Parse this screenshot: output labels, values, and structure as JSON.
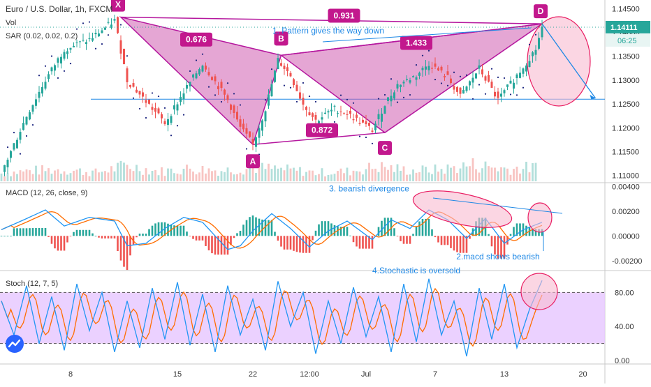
{
  "header": {
    "symbol_title": "Euro / U.S. Dollar, 1h, FXCM",
    "vol_label": "Vol",
    "sar_label": "SAR (0.02, 0.02, 0.2)",
    "last_price": "1.14111",
    "countdown": "06:25"
  },
  "panes": {
    "macd_label": "MACD (12, 26, close, 9)",
    "stoch_label": "Stoch (12, 7, 5)"
  },
  "colors": {
    "pattern_fill": "#d05cb0",
    "pattern_line": "#b5179e",
    "annotation": "#1e88e5",
    "ellipse_fill": "#f8bbd0",
    "ellipse_line": "#e91e63",
    "candle_up": "#26a69a",
    "candle_down": "#ef5350",
    "stoch_band": "#e6c6ff",
    "stoch_k": "#2196f3",
    "stoch_d": "#ff6d00",
    "macd_line": "#2196f3",
    "signal_line": "#ff6d00"
  },
  "icons": {
    "logo": "tradingview-cloud-icon"
  },
  "chart_data": [
    {
      "type": "line",
      "title": "Euro / U.S. Dollar, 1h, FXCM",
      "ylim": [
        1.1085,
        1.1465
      ],
      "y_ticks": [
        "1.14500",
        "1.14000",
        "1.13500",
        "1.13000",
        "1.12500",
        "1.12000",
        "1.11500",
        "1.11000"
      ],
      "y_tick_values": [
        1.145,
        1.14,
        1.135,
        1.13,
        1.125,
        1.12,
        1.115,
        1.11
      ],
      "x_ticks": [
        "8",
        "15",
        "22",
        "12:00",
        "Jul",
        "7",
        "13",
        "20"
      ],
      "x_tick_index": [
        22,
        56,
        80,
        98,
        116,
        138,
        160,
        185
      ],
      "close_path": {
        "index": [
          0,
          8,
          14,
          20,
          28,
          36,
          40,
          48,
          52,
          58,
          64,
          72,
          76,
          80,
          84,
          88,
          92,
          96,
          100,
          106,
          110,
          118,
          122,
          126,
          132,
          136,
          142,
          146,
          152,
          158,
          164,
          170,
          172
        ],
        "close": [
          1.1105,
          1.1225,
          1.13,
          1.1365,
          1.1385,
          1.1425,
          1.13,
          1.124,
          1.121,
          1.1275,
          1.1335,
          1.1258,
          1.12,
          1.1165,
          1.124,
          1.1342,
          1.131,
          1.125,
          1.1215,
          1.124,
          1.123,
          1.1195,
          1.125,
          1.129,
          1.131,
          1.1335,
          1.1305,
          1.1265,
          1.1325,
          1.1258,
          1.131,
          1.1365,
          1.1411
        ]
      },
      "pattern": {
        "name": "harmonic",
        "points": [
          {
            "label": "X",
            "index": 38,
            "price": 1.1432
          },
          {
            "label": "A",
            "index": 80,
            "price": 1.1165
          },
          {
            "label": "B",
            "index": 89,
            "price": 1.1352
          },
          {
            "label": "C",
            "index": 122,
            "price": 1.119
          },
          {
            "label": "D",
            "index": 172,
            "price": 1.1418
          }
        ],
        "ratios": [
          {
            "text": "0.676",
            "index": 62,
            "price": 1.1385
          },
          {
            "text": "0.931",
            "index": 109,
            "price": 1.1435
          },
          {
            "text": "1.433",
            "index": 132,
            "price": 1.1378
          },
          {
            "text": "0.872",
            "index": 102,
            "price": 1.1195
          }
        ]
      },
      "horizontal_line": {
        "price": 1.126
      },
      "target_arrow": {
        "from_index": 172,
        "from_price": 1.1418,
        "to_index": 189,
        "to_price": 1.1262
      },
      "volume": {
        "index": [
          0,
          10,
          20,
          30,
          40,
          50,
          60,
          70,
          80,
          90,
          100,
          110,
          120,
          130,
          140,
          150,
          160,
          170
        ],
        "values": [
          40,
          55,
          60,
          45,
          80,
          50,
          65,
          55,
          70,
          60,
          45,
          50,
          75,
          55,
          60,
          85,
          65,
          70
        ]
      },
      "annotations": [
        {
          "text": "1. Pattern gives the way down",
          "index": 104,
          "price": 1.1398
        }
      ]
    },
    {
      "type": "line",
      "title": "MACD (12, 26, close, 9)",
      "ylim": [
        -0.0028,
        0.0043
      ],
      "y_ticks": [
        "0.00400",
        "0.00200",
        "0.00000",
        "-0.00200"
      ],
      "y_tick_values": [
        0.004,
        0.002,
        0.0,
        -0.002
      ],
      "series": [
        {
          "index": [
            0,
            8,
            14,
            20,
            28,
            36,
            40,
            46,
            52,
            58,
            64,
            72,
            76,
            80,
            86,
            92,
            98,
            104,
            110,
            118,
            124,
            130,
            136,
            142,
            148,
            154,
            160,
            166,
            172
          ],
          "values": [
            0.0005,
            0.0014,
            0.0021,
            0.0008,
            0.0015,
            0.0012,
            -0.0008,
            -0.0006,
            0.0006,
            0.0015,
            0.0011,
            -0.0011,
            -0.0008,
            0.0004,
            0.0018,
            0.0006,
            -0.0009,
            0.0004,
            0.0012,
            -0.0003,
            0.0013,
            0.0006,
            0.0021,
            0.0013,
            -0.0002,
            0.0014,
            -0.0006,
            0.0005,
            0.0011
          ]
        }
      ],
      "annotations": [
        {
          "text": "3. bearish divergence",
          "index": 117,
          "value": 0.0036
        },
        {
          "text": "2.macd shows bearish",
          "index": 158,
          "value": -0.0019
        }
      ]
    },
    {
      "type": "line",
      "title": "Stoch (12, 7, 5)",
      "ylim": [
        -4,
        104
      ],
      "y_ticks": [
        "80.00",
        "40.00",
        "0.00"
      ],
      "y_tick_values": [
        80,
        40,
        0
      ],
      "band": [
        20,
        80
      ],
      "series": [
        {
          "index": [
            0,
            4,
            8,
            12,
            16,
            20,
            24,
            28,
            32,
            36,
            40,
            44,
            48,
            52,
            56,
            60,
            64,
            68,
            72,
            76,
            80,
            84,
            88,
            92,
            96,
            100,
            104,
            108,
            112,
            116,
            120,
            124,
            128,
            132,
            136,
            140,
            144,
            148,
            152,
            156,
            160,
            164,
            168,
            172
          ],
          "values": [
            70,
            30,
            88,
            20,
            75,
            12,
            90,
            35,
            80,
            10,
            70,
            15,
            85,
            25,
            92,
            18,
            78,
            10,
            88,
            30,
            72,
            12,
            93,
            40,
            80,
            8,
            70,
            20,
            86,
            28,
            75,
            10,
            90,
            22,
            96,
            30,
            70,
            5,
            85,
            25,
            90,
            15,
            60,
            94
          ]
        }
      ],
      "annotations": [
        {
          "text": "4.Stochastic is oversold",
          "index": 132,
          "value": 104
        }
      ]
    }
  ]
}
